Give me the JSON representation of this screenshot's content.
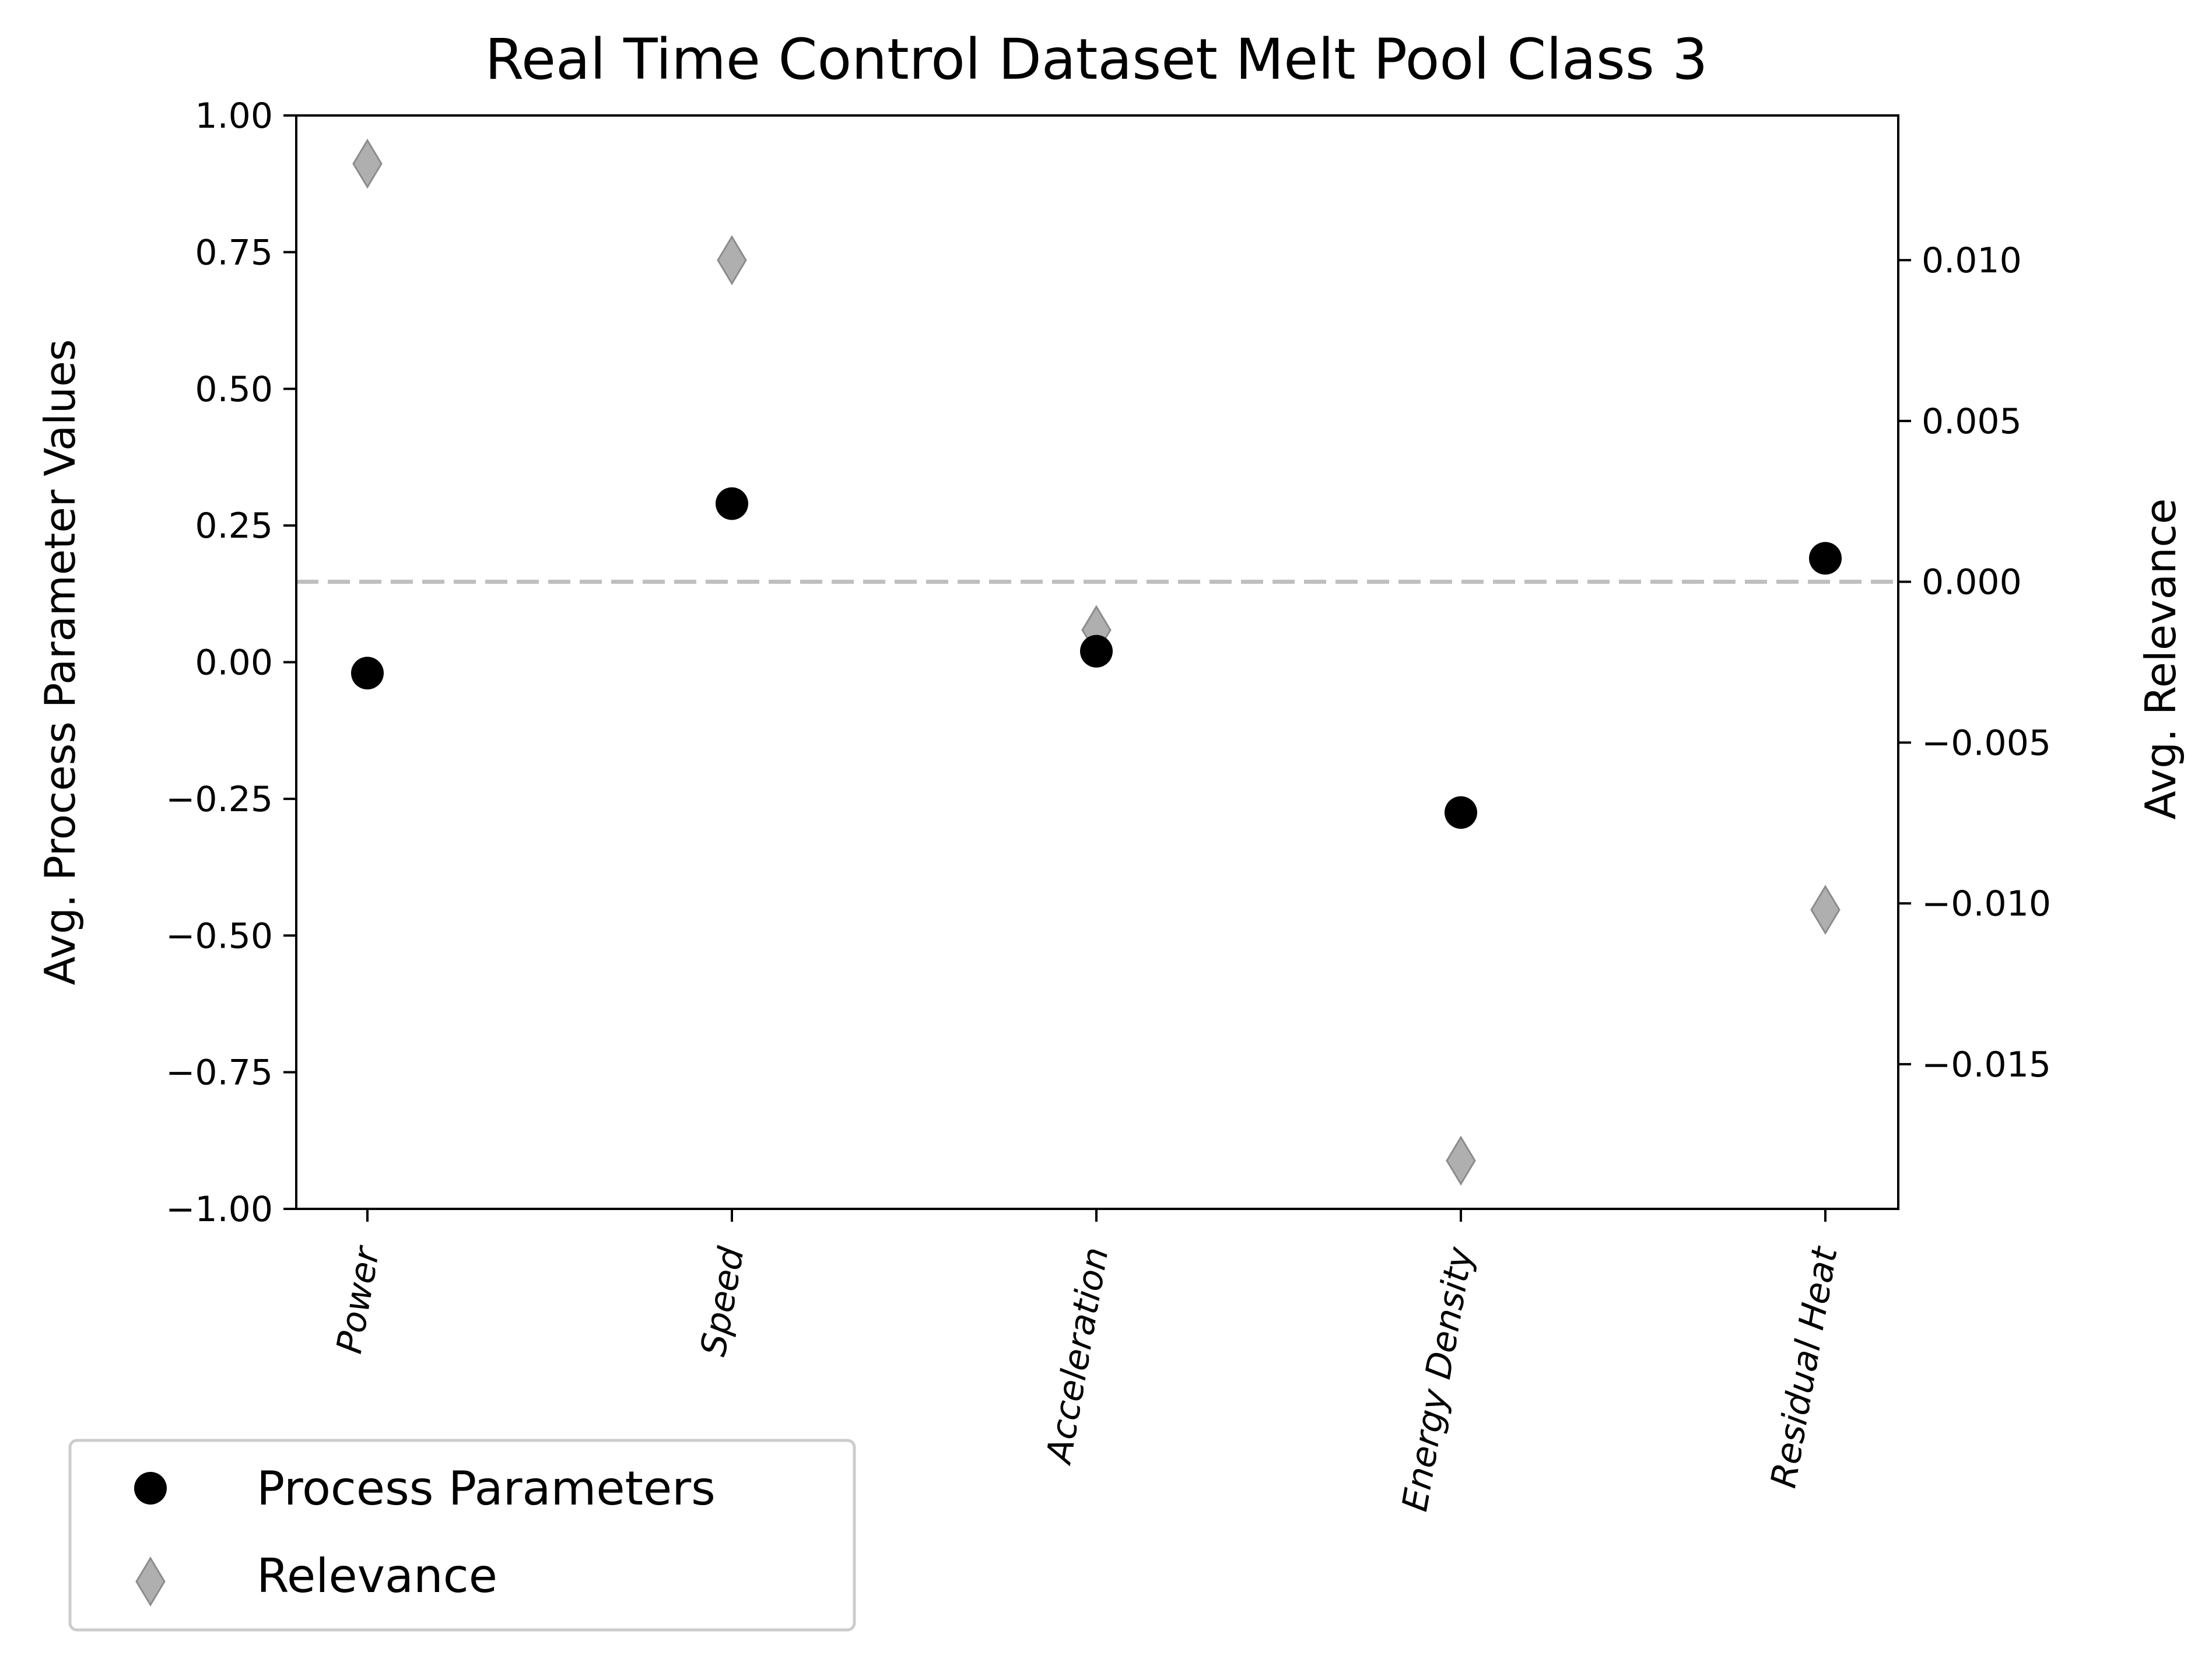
{
  "chart_data": {
    "type": "scatter",
    "title": "Real Time Control Dataset Melt Pool Class 3",
    "categories": [
      "Power",
      "Speed",
      "Acceleration",
      "Energy Density",
      "Residual Heat"
    ],
    "ylabel_left": "Avg. Process Parameter Values",
    "ylabel_right": "Avg. Relevance",
    "ylim_left": [
      -1.0,
      1.0
    ],
    "ylim_right": [
      -0.0195,
      0.0145
    ],
    "yticks_left": [
      "1.00",
      "0.75",
      "0.50",
      "0.25",
      "0.00",
      "−0.25",
      "−0.50",
      "−0.75",
      "−1.00"
    ],
    "yticks_right": [
      "0.010",
      "0.005",
      "0.000",
      "−0.005",
      "−0.010",
      "−0.015"
    ],
    "series": [
      {
        "name": "Process Parameters",
        "axis": "left",
        "marker": "circle",
        "color": "#000000",
        "values": [
          -0.02,
          0.29,
          0.02,
          -0.275,
          0.19
        ]
      },
      {
        "name": "Relevance",
        "axis": "right",
        "marker": "diamond",
        "color": "#a6a6a6",
        "values": [
          0.013,
          0.01,
          -0.0015,
          -0.018,
          -0.0102
        ]
      }
    ],
    "reference_line": {
      "axis": "right",
      "value": 0.0,
      "style": "dashed",
      "color": "#bfbfbf"
    },
    "legend": {
      "placement": "bottom-left-outside"
    },
    "grid": false
  }
}
